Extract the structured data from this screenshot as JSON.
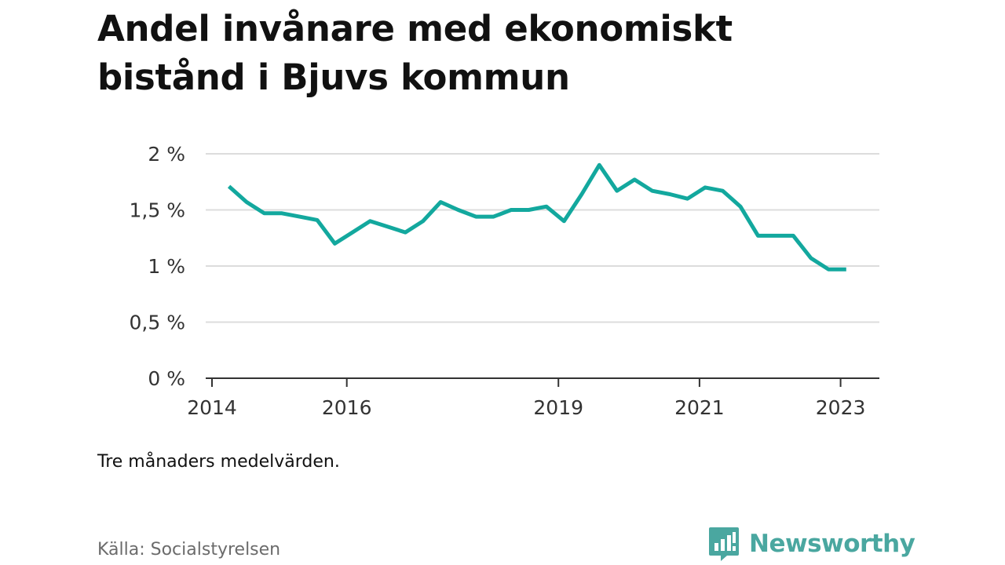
{
  "title_lines": [
    "Andel invånare med ekonomiskt",
    "bistånd i Bjuvs kommun"
  ],
  "note": "Tre månaders medelvärden.",
  "source": "Källa: Socialstyrelsen",
  "brand": {
    "name": "Newsworthy",
    "icon": "bar-chart-speech-bubble-icon",
    "color": "#4aa7a0"
  },
  "chart_data": {
    "type": "line",
    "title": "Andel invånare med ekonomiskt bistånd i Bjuvs kommun",
    "xlabel": "",
    "ylabel": "",
    "line_color": "#13a89e",
    "grid": true,
    "y_ticks": [
      0,
      0.5,
      1,
      1.5,
      2
    ],
    "y_tick_labels": [
      "0 %",
      "0,5 %",
      "1 %",
      "1,5 %",
      "2 %"
    ],
    "ylim": [
      0,
      2
    ],
    "x_ticks": [
      2014,
      2016,
      2019,
      2021,
      2023
    ],
    "x_tick_labels": [
      "2014",
      "2016",
      "2019",
      "2021",
      "2023"
    ],
    "xlim": [
      2014,
      2023.55
    ],
    "series": [
      {
        "x": [
          2014.33,
          2014.58,
          2014.83,
          2015.08,
          2015.33,
          2015.58,
          2015.83,
          2016.08,
          2016.33,
          2016.58,
          2016.83,
          2017.08,
          2017.33,
          2017.58,
          2017.83,
          2018.08,
          2018.33,
          2018.58,
          2018.83,
          2019.08,
          2019.33,
          2019.58,
          2019.83,
          2020.08,
          2020.33,
          2020.58,
          2020.83,
          2021.08,
          2021.33,
          2021.58,
          2021.83,
          2022.08,
          2022.33,
          2022.58,
          2022.83,
          2023.08
        ],
        "y": [
          1.71,
          1.57,
          1.47,
          1.47,
          1.44,
          1.41,
          1.2,
          1.3,
          1.4,
          1.35,
          1.3,
          1.4,
          1.57,
          1.5,
          1.44,
          1.44,
          1.5,
          1.5,
          1.53,
          1.4,
          1.64,
          1.9,
          1.67,
          1.77,
          1.67,
          1.64,
          1.6,
          1.7,
          1.67,
          1.53,
          1.27,
          1.27,
          1.27,
          1.07,
          0.97,
          0.97
        ]
      }
    ]
  }
}
